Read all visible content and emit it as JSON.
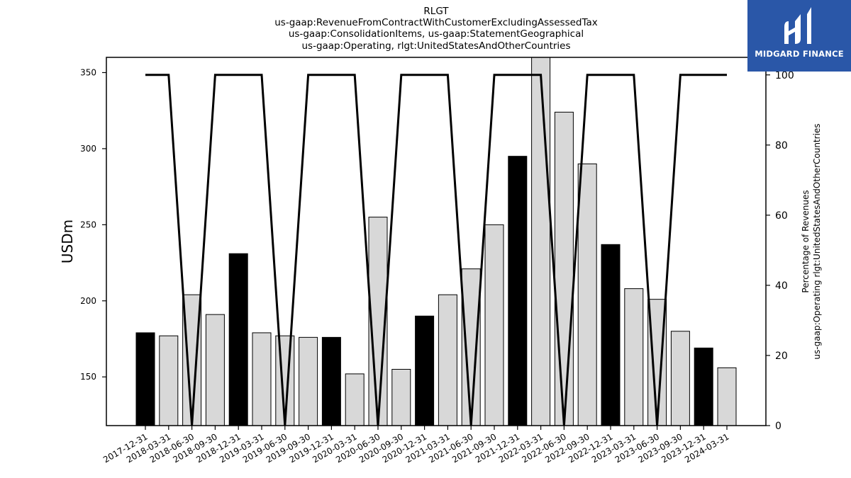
{
  "logo": {
    "text": "MIDGARD FINANCE",
    "color": "#2a57a8"
  },
  "chart_data": {
    "type": "bar",
    "title": [
      "RLGT",
      "us-gaap:RevenueFromContractWithCustomerExcludingAssessedTax",
      "us-gaap:ConsolidationItems, us-gaap:StatementGeographical",
      "us-gaap:Operating, rlgt:UnitedStatesAndOtherCountries"
    ],
    "ylabel": "USDm",
    "y2label": [
      "Percentage of Revenues",
      "us-gaap:Operating rlgt:UnitedStatesAndOtherCountries"
    ],
    "ylim": [
      118,
      360
    ],
    "y2lim": [
      0,
      105
    ],
    "yticks": [
      150,
      200,
      250,
      300,
      350
    ],
    "y2ticks": [
      0,
      20,
      40,
      60,
      80,
      100
    ],
    "categories": [
      "2017-12-31",
      "2018-03-31",
      "2018-06-30",
      "2018-09-30",
      "2018-12-31",
      "2019-03-31",
      "2019-06-30",
      "2019-09-30",
      "2019-12-31",
      "2020-03-31",
      "2020-06-30",
      "2020-09-30",
      "2020-12-31",
      "2021-03-31",
      "2021-06-30",
      "2021-09-30",
      "2021-12-31",
      "2022-03-31",
      "2022-06-30",
      "2022-09-30",
      "2022-12-31",
      "2023-03-31",
      "2023-06-30",
      "2023-09-30",
      "2023-12-31",
      "2024-03-31"
    ],
    "series": [
      {
        "type": "bar",
        "values": [
          179,
          177,
          204,
          191,
          231,
          179,
          177,
          176,
          176,
          152,
          255,
          155,
          190,
          204,
          221,
          250,
          295,
          360,
          324,
          290,
          237,
          208,
          201,
          180,
          169,
          156
        ],
        "highlight": [
          true,
          false,
          false,
          false,
          true,
          false,
          false,
          false,
          true,
          false,
          false,
          false,
          true,
          false,
          false,
          false,
          true,
          false,
          false,
          false,
          true,
          false,
          false,
          false,
          true,
          false
        ],
        "color_highlight": "#000000",
        "color": "#d8d8d8"
      },
      {
        "type": "line",
        "axis": "right",
        "values": [
          100,
          100,
          0,
          100,
          100,
          100,
          0,
          100,
          100,
          100,
          0,
          100,
          100,
          100,
          0,
          100,
          100,
          100,
          0,
          100,
          100,
          100,
          0,
          100,
          100,
          100
        ],
        "color": "#000000"
      }
    ]
  }
}
